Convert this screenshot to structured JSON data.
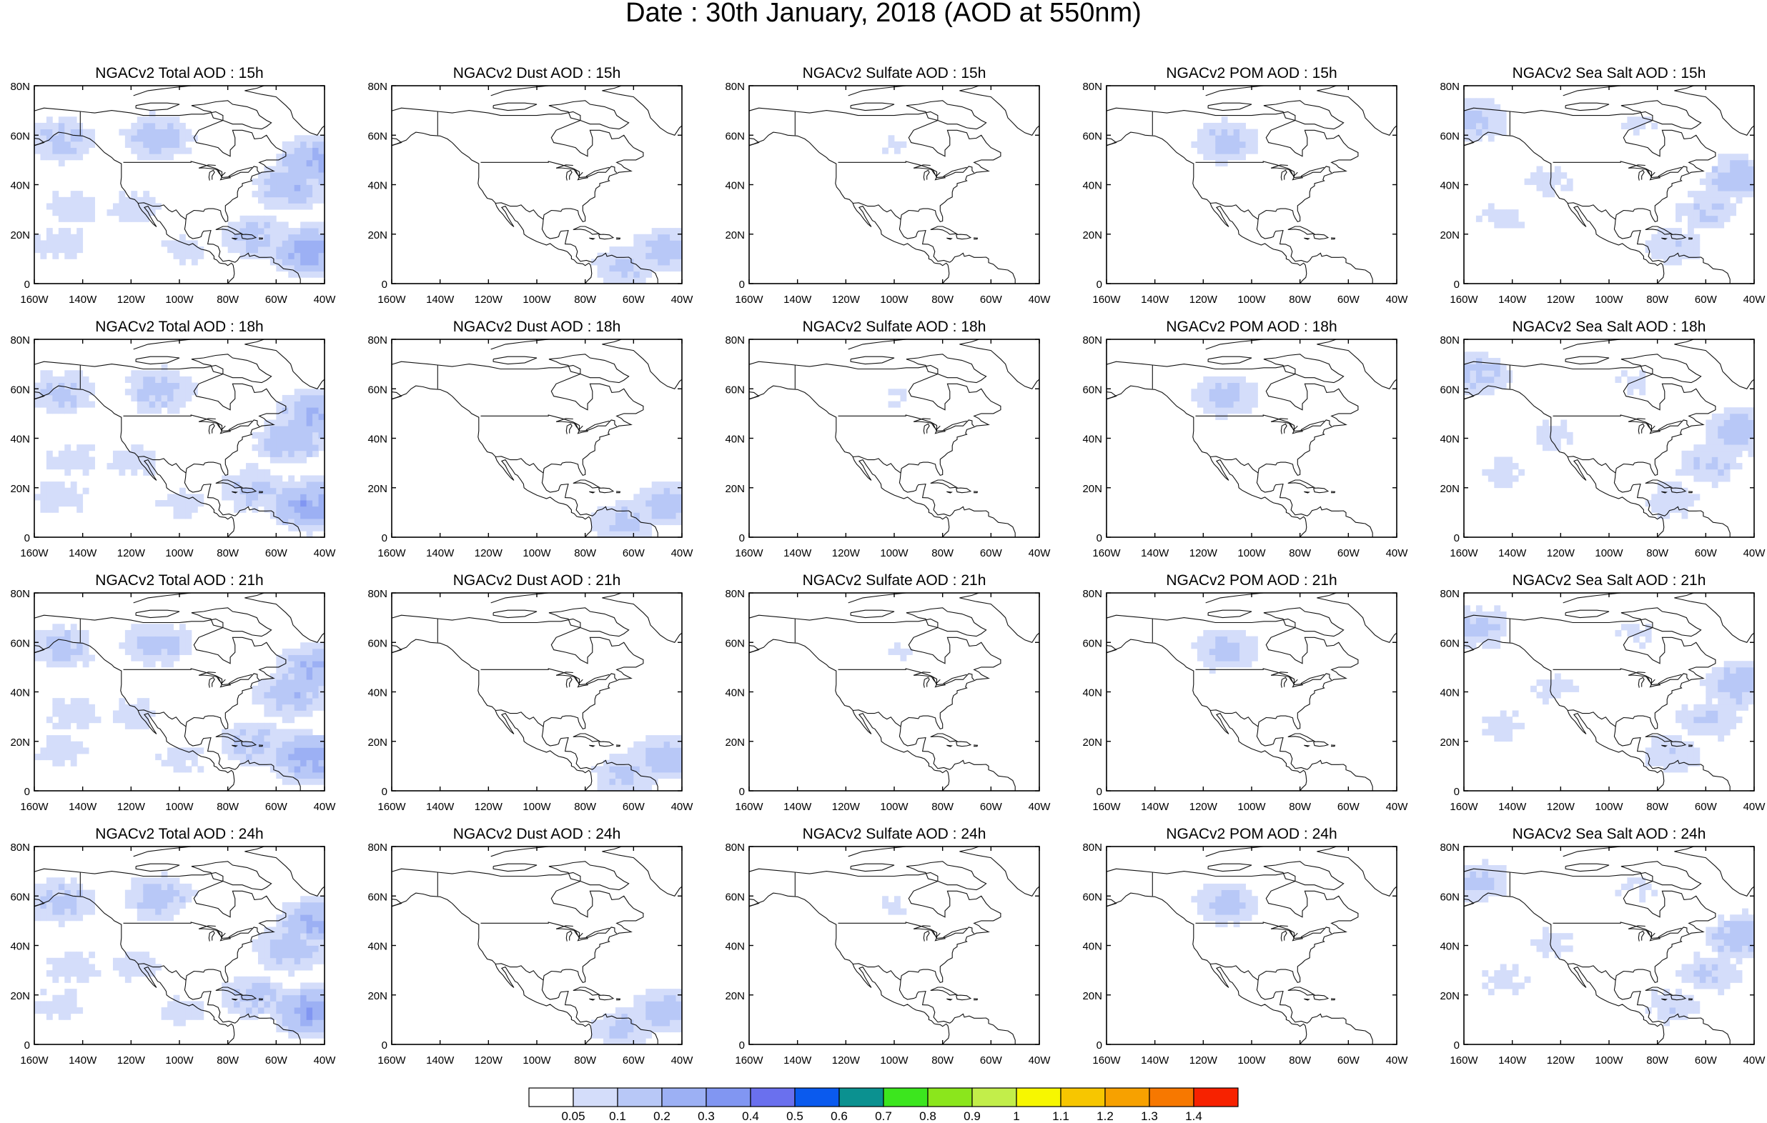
{
  "page_title": "Date : 30th January, 2018 (AOD at 550nm)",
  "species": [
    "Total",
    "Dust",
    "Sulfate",
    "POM",
    "Sea Salt"
  ],
  "hours": [
    "15h",
    "18h",
    "21h",
    "24h"
  ],
  "panel_titles": [
    [
      "NGACv2 Total AOD : 15h",
      "NGACv2 Dust AOD : 15h",
      "NGACv2 Sulfate AOD : 15h",
      "NGACv2 POM AOD : 15h",
      "NGACv2 Sea Salt AOD : 15h"
    ],
    [
      "NGACv2 Total AOD : 18h",
      "NGACv2 Dust AOD : 18h",
      "NGACv2 Sulfate AOD : 18h",
      "NGACv2 POM AOD : 18h",
      "NGACv2 Sea Salt AOD : 18h"
    ],
    [
      "NGACv2 Total AOD : 21h",
      "NGACv2 Dust AOD : 21h",
      "NGACv2 Sulfate AOD : 21h",
      "NGACv2 POM AOD : 21h",
      "NGACv2 Sea Salt AOD : 21h"
    ],
    [
      "NGACv2 Total AOD : 24h",
      "NGACv2 Dust AOD : 24h",
      "NGACv2 Sulfate AOD : 24h",
      "NGACv2 POM AOD : 24h",
      "NGACv2 Sea Salt  AOD : 24h"
    ]
  ],
  "lat_ticks": [
    "80N",
    "60N",
    "40N",
    "20N",
    "0"
  ],
  "lon_ticks": [
    "160W",
    "140W",
    "120W",
    "100W",
    "80W",
    "60W",
    "40W"
  ],
  "map_extent": {
    "lon": [
      -160,
      -40
    ],
    "lat": [
      0,
      80
    ]
  },
  "colorbar": {
    "colors": [
      "#ffffff",
      "#d4ddfa",
      "#b8c8f7",
      "#9cb0f4",
      "#8196f2",
      "#6a70ee",
      "#0a5aee",
      "#0b9190",
      "#3ce61e",
      "#8be61c",
      "#c2ee4a",
      "#f7f700",
      "#f7c600",
      "#f7a100",
      "#f77800",
      "#f72200"
    ],
    "labels": [
      "0.05",
      "0.1",
      "0.2",
      "0.3",
      "0.4",
      "0.5",
      "0.6",
      "0.7",
      "0.8",
      "0.9",
      "1",
      "1.1",
      "1.2",
      "1.3",
      "1.4"
    ]
  },
  "aod_fields": {
    "Total": {
      "blobs": [
        {
          "lon": -150,
          "lat": 57,
          "value": 0.13
        },
        {
          "lon": -110,
          "lat": 58,
          "value": 0.14
        },
        {
          "lon": -120,
          "lat": 30,
          "value": 0.08
        },
        {
          "lon": -145,
          "lat": 30,
          "value": 0.08
        },
        {
          "lon": -150,
          "lat": 15,
          "value": 0.08
        },
        {
          "lon": -100,
          "lat": 12,
          "value": 0.07
        },
        {
          "lon": -55,
          "lat": 38,
          "value": 0.17
        },
        {
          "lon": -45,
          "lat": 48,
          "value": 0.21
        },
        {
          "lon": -47,
          "lat": 12,
          "value": 0.26
        },
        {
          "lon": -70,
          "lat": 18,
          "value": 0.13
        }
      ]
    },
    "Dust": {
      "blobs": [
        {
          "lon": -48,
          "lat": 12,
          "value": 0.15
        },
        {
          "lon": -65,
          "lat": 5,
          "value": 0.12
        }
      ]
    },
    "Sulfate": {
      "blobs": [
        {
          "lon": -100,
          "lat": 55,
          "value": 0.055
        }
      ]
    },
    "POM": {
      "blobs": [
        {
          "lon": -112,
          "lat": 56,
          "value": 0.13
        }
      ]
    },
    "Sea Salt": {
      "blobs": [
        {
          "lon": -155,
          "lat": 65,
          "value": 0.12
        },
        {
          "lon": -125,
          "lat": 40,
          "value": 0.07
        },
        {
          "lon": -145,
          "lat": 25,
          "value": 0.07
        },
        {
          "lon": -60,
          "lat": 28,
          "value": 0.11
        },
        {
          "lon": -47,
          "lat": 42,
          "value": 0.16
        },
        {
          "lon": -75,
          "lat": 14,
          "value": 0.09
        },
        {
          "lon": -90,
          "lat": 62,
          "value": 0.06
        }
      ]
    }
  }
}
